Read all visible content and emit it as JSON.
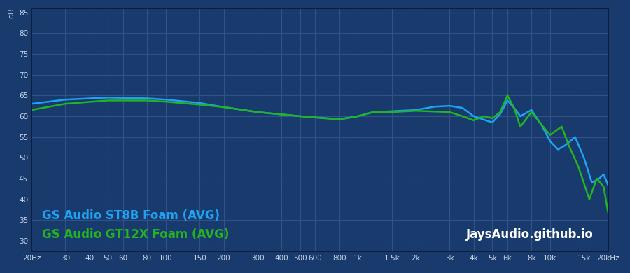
{
  "chart_data": {
    "type": "line",
    "y_label": "dB",
    "annotations": [
      "JaysAudio.github.io"
    ],
    "log": "x",
    "grid": true,
    "legend": "lower left",
    "xlim": [
      20,
      20000
    ],
    "ylim": [
      27.5,
      86
    ],
    "xticks": [
      {
        "value": 20,
        "label": "20Hz"
      },
      30,
      40,
      50,
      60,
      80,
      100,
      150,
      200,
      300,
      400,
      500,
      600,
      800,
      {
        "value": 1000,
        "label": "1k"
      },
      {
        "value": 1500,
        "label": "1.5k"
      },
      {
        "value": 2000,
        "label": "2k"
      },
      {
        "value": 3000,
        "label": "3k"
      },
      {
        "value": 4000,
        "label": "4k"
      },
      {
        "value": 5000,
        "label": "5k"
      },
      {
        "value": 6000,
        "label": "6k"
      },
      {
        "value": 8000,
        "label": "8k"
      },
      {
        "value": 10000,
        "label": "10k"
      },
      {
        "value": 15000,
        "label": "15k"
      },
      {
        "value": 20000,
        "label": "20kHz"
      }
    ],
    "yticks": [
      30,
      35,
      40,
      45,
      50,
      55,
      60,
      65,
      70,
      75,
      80,
      85
    ],
    "series": [
      {
        "name": "GS Audio ST8B Foam (AVG)",
        "color": "#1fa2f2",
        "x": [
          20,
          30,
          50,
          80,
          100,
          150,
          200,
          300,
          500,
          800,
          1000,
          1200,
          1500,
          2000,
          2500,
          3000,
          3500,
          4000,
          5000,
          5500,
          6000,
          6500,
          7000,
          8000,
          9000,
          10000,
          11000,
          12000,
          13500,
          15000,
          16500,
          18000,
          19000,
          20000
        ],
        "values": [
          63,
          64,
          64.5,
          64.3,
          64,
          63.2,
          62.2,
          61,
          60,
          59.3,
          60,
          61,
          61.2,
          61.5,
          62.3,
          62.5,
          62,
          60,
          58.5,
          60.5,
          63.8,
          62,
          60,
          61.5,
          58,
          54,
          52,
          53,
          55,
          50,
          44,
          45,
          46,
          43.5
        ]
      },
      {
        "name": "GS Audio GT12X Foam (AVG)",
        "color": "#22b422",
        "x": [
          20,
          30,
          50,
          80,
          100,
          150,
          200,
          300,
          500,
          800,
          1000,
          1200,
          1500,
          2000,
          3000,
          3500,
          4000,
          4500,
          5000,
          5500,
          6000,
          6500,
          7000,
          8000,
          9000,
          10000,
          11500,
          12500,
          14000,
          16000,
          17500,
          19000,
          20000
        ],
        "values": [
          61.5,
          63,
          63.8,
          63.8,
          63.5,
          62.8,
          62.2,
          61,
          60,
          59.2,
          60,
          61,
          61,
          61.3,
          61,
          60,
          59,
          60,
          59.5,
          61,
          65,
          62,
          57.5,
          61,
          58,
          55.5,
          57.5,
          53,
          48,
          40,
          45,
          43,
          37
        ]
      }
    ]
  }
}
